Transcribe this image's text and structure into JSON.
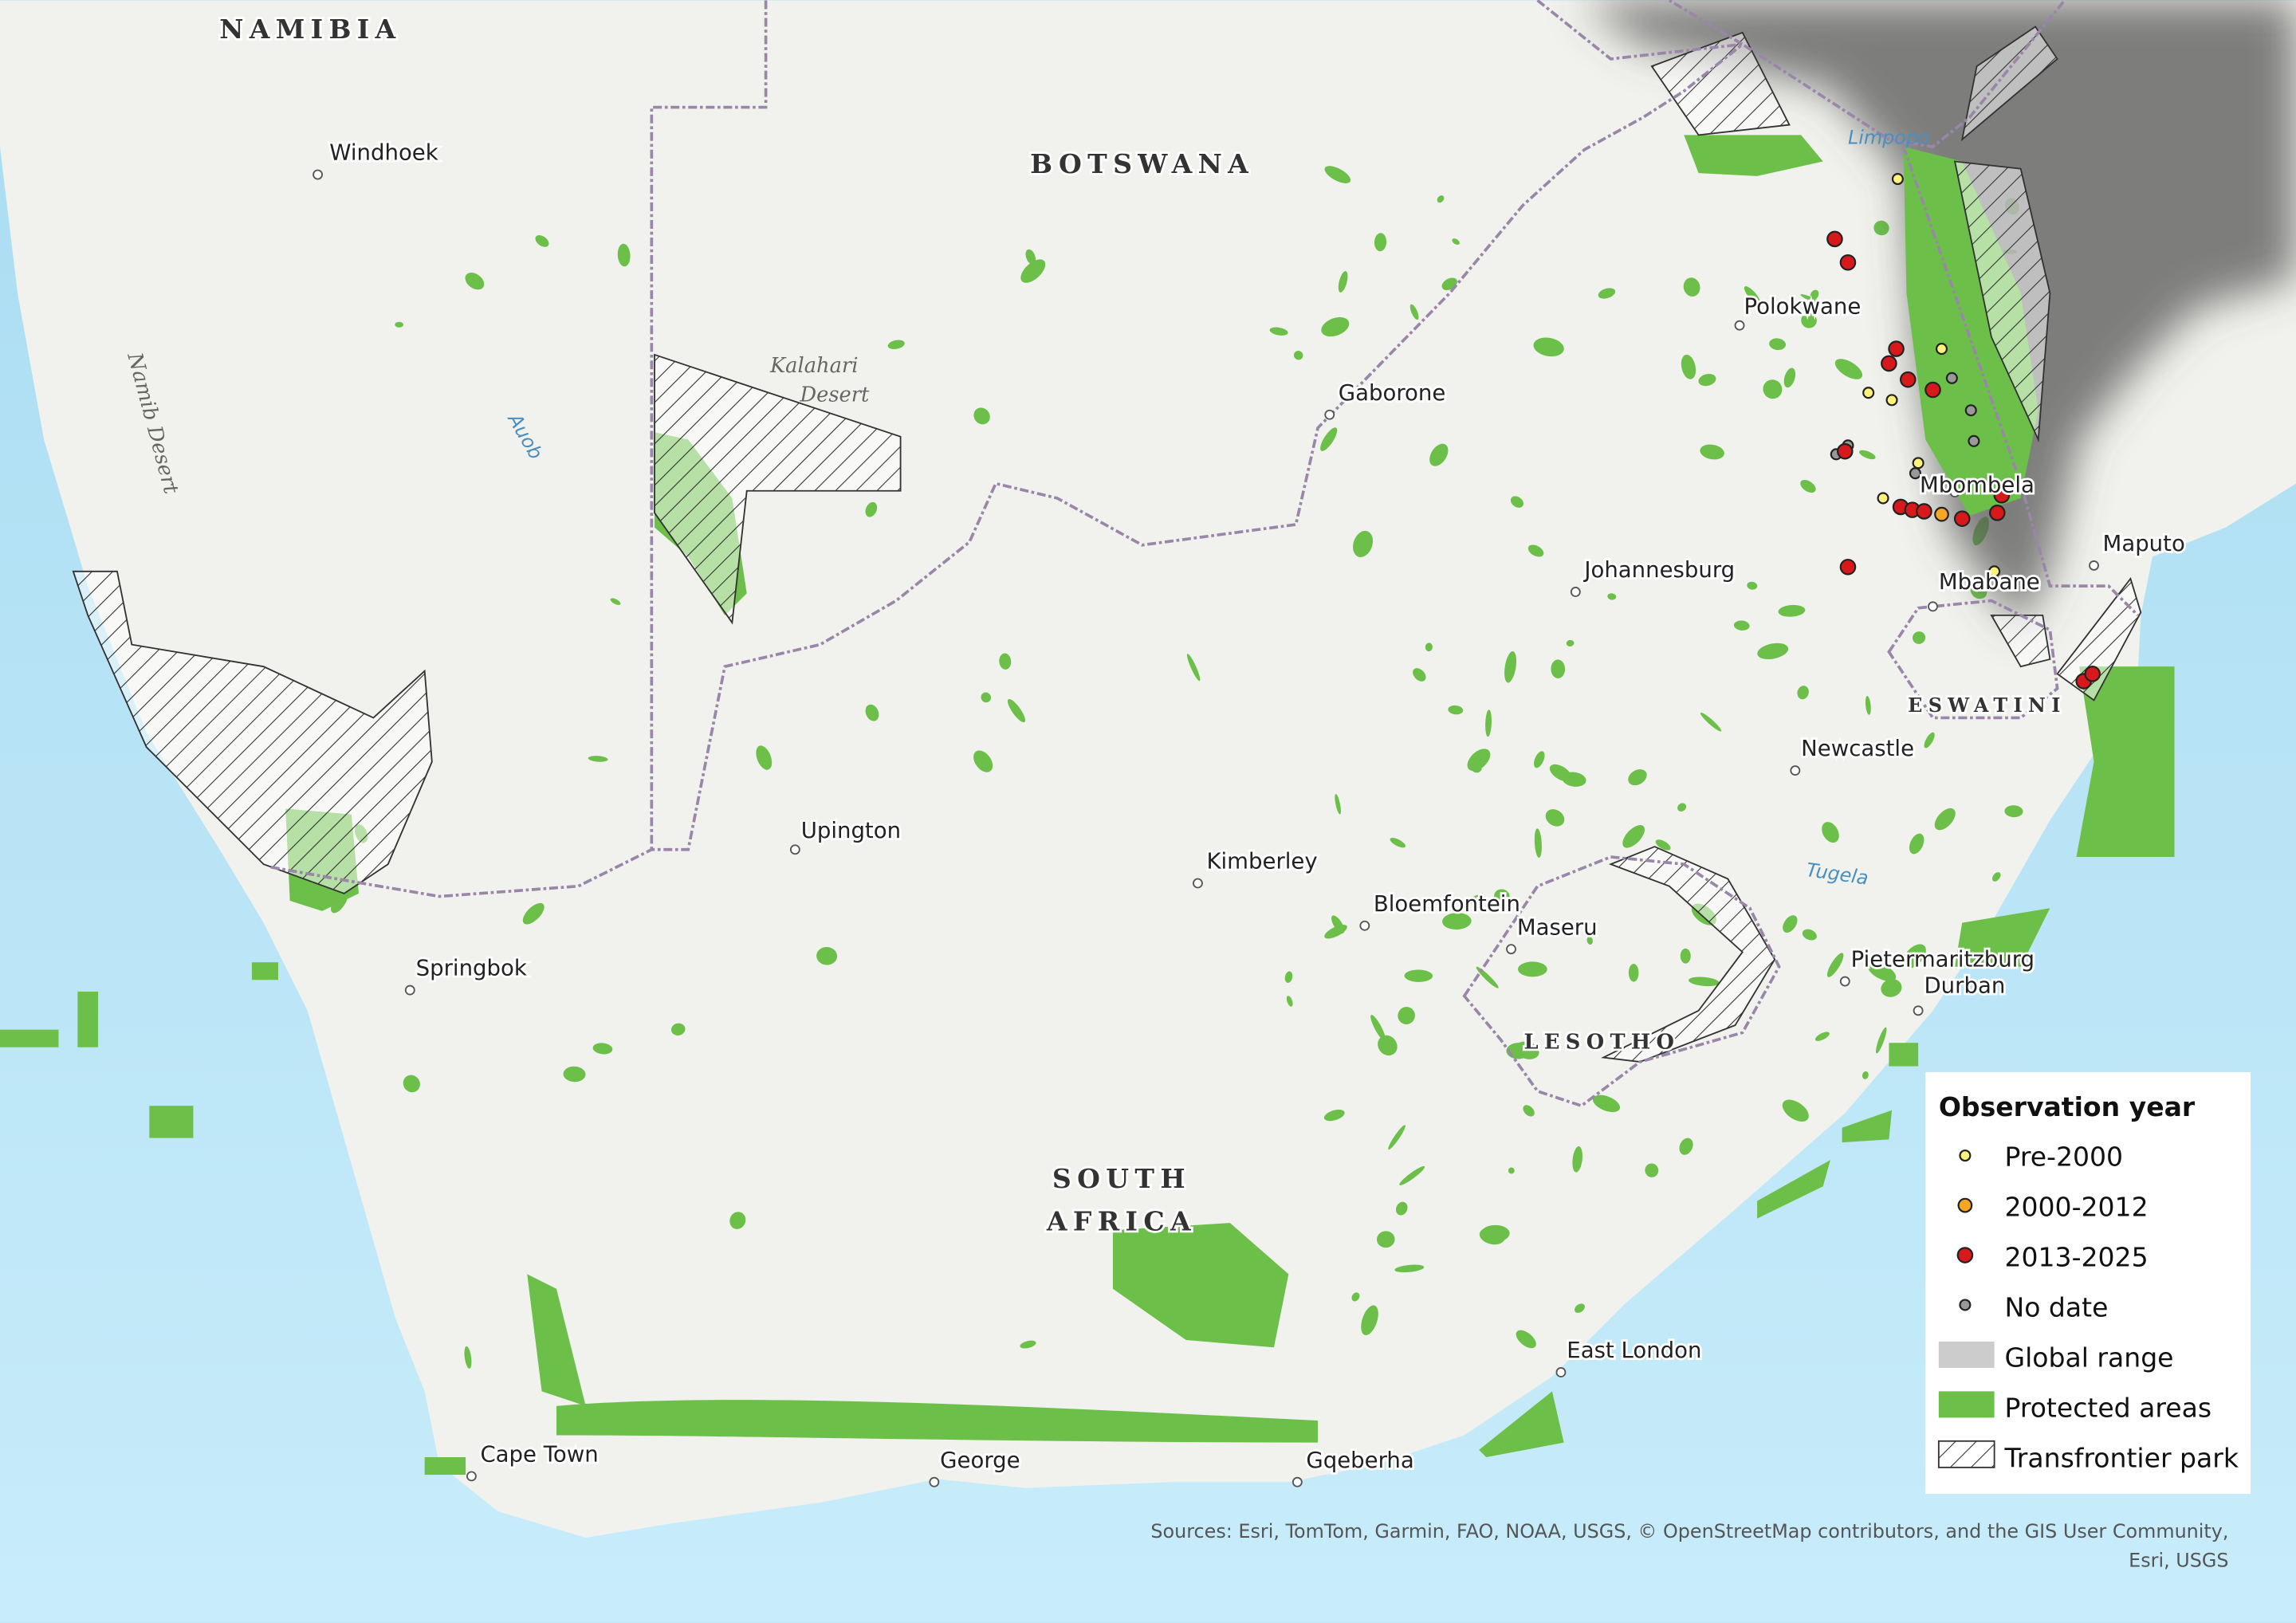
{
  "map": {
    "countries": [
      "NAMIBIA",
      "BOTSWANA",
      "LESOTHO",
      "ESWATINI"
    ],
    "south_africa_lines": [
      "SOUTH",
      "AFRICA"
    ],
    "cities": [
      "Windhoek",
      "Gaborone",
      "Polokwane",
      "Johannesburg",
      "Mbombela",
      "Maputo",
      "Mbabane",
      "Newcastle",
      "Upington",
      "Kimberley",
      "Bloemfontein",
      "Maseru",
      "Springbok",
      "Pietermaritzburg",
      "Durban",
      "East London",
      "Cape Town",
      "George",
      "Gqeberha"
    ],
    "kalahari_lines": [
      "Kalahari",
      "Desert"
    ],
    "namib": "Namib Desert",
    "rivers": [
      "Auob",
      "Limpopo",
      "Tugela"
    ]
  },
  "legend": {
    "title": "Observation year",
    "items": [
      "Pre-2000",
      "2000-2012",
      "2013-2025",
      "No date",
      "Global range",
      "Protected areas",
      "Transfrontier park"
    ]
  },
  "attribution": [
    "Sources: Esri, TomTom, Garmin, FAO, NOAA, USGS, © OpenStreetMap contributors, and the GIS User Community,",
    "Esri, USGS"
  ]
}
